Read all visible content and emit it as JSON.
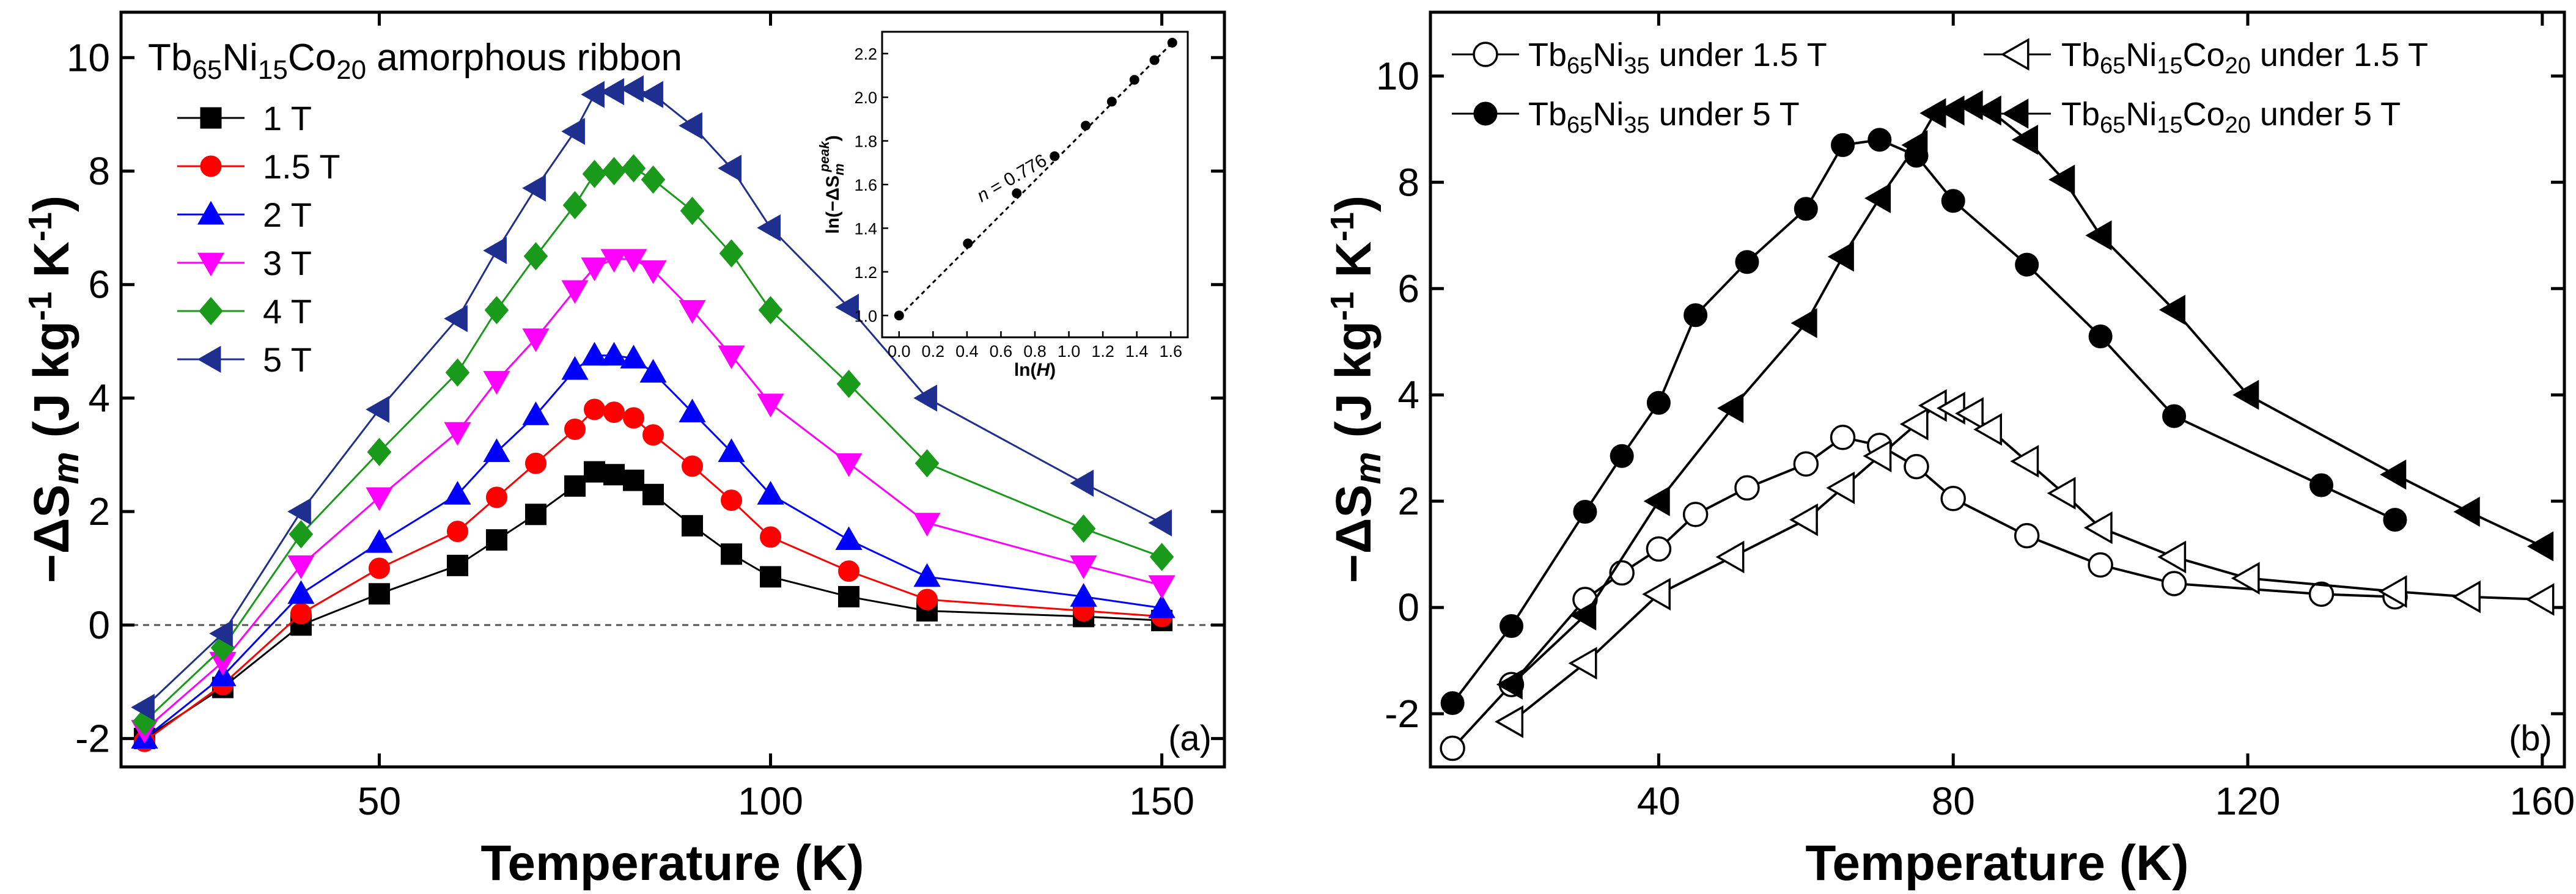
{
  "chart_data": [
    {
      "type": "line",
      "panel_label": "(a)",
      "title_parts": {
        "a": "Tb",
        "a_sub": "65",
        "b": "Ni",
        "b_sub": "15",
        "c": "Co",
        "c_sub": "20",
        "rest": " amorphous ribbon"
      },
      "xlabel": "Temperature (K)",
      "ylabel": {
        "prefix": "−ΔS",
        "sub": "m",
        "units_a": " (J kg",
        "sup1": "-1",
        "units_b": " K",
        "sup2": "-1",
        "units_c": ")"
      },
      "xlim": [
        17,
        158
      ],
      "ylim": [
        -2.5,
        10.8
      ],
      "xticks": [
        50,
        100,
        150
      ],
      "yticks": [
        -2,
        0,
        2,
        4,
        6,
        8,
        10
      ],
      "zero_line": true,
      "legend_position": "upper-left",
      "series": [
        {
          "name": "1 T",
          "color": "#000000",
          "marker": "square",
          "x": [
            20,
            30,
            40,
            50,
            60,
            65,
            70,
            75,
            77.5,
            80,
            82.5,
            85,
            90,
            95,
            100,
            110,
            120,
            140,
            150
          ],
          "y": [
            -2.0,
            -1.1,
            0.0,
            0.55,
            1.05,
            1.5,
            1.95,
            2.45,
            2.7,
            2.65,
            2.55,
            2.3,
            1.75,
            1.25,
            0.85,
            0.5,
            0.25,
            0.15,
            0.08
          ]
        },
        {
          "name": "1.5 T",
          "color": "#ff0000",
          "marker": "circle",
          "x": [
            20,
            30,
            40,
            50,
            60,
            65,
            70,
            75,
            77.5,
            80,
            82.5,
            85,
            90,
            95,
            100,
            110,
            120,
            140,
            150
          ],
          "y": [
            -2.05,
            -1.05,
            0.2,
            1.0,
            1.65,
            2.25,
            2.85,
            3.45,
            3.8,
            3.75,
            3.65,
            3.35,
            2.8,
            2.2,
            1.55,
            0.95,
            0.45,
            0.25,
            0.15
          ]
        },
        {
          "name": "2 T",
          "color": "#0000ff",
          "marker": "triangle-up",
          "x": [
            20,
            30,
            40,
            50,
            60,
            65,
            70,
            75,
            77.5,
            80,
            82.5,
            85,
            90,
            95,
            100,
            110,
            120,
            140,
            150
          ],
          "y": [
            -2.0,
            -0.9,
            0.55,
            1.45,
            2.3,
            3.05,
            3.7,
            4.5,
            4.75,
            4.75,
            4.7,
            4.45,
            3.75,
            3.05,
            2.3,
            1.5,
            0.85,
            0.5,
            0.3
          ]
        },
        {
          "name": "3 T",
          "color": "#ff00ff",
          "marker": "triangle-down",
          "x": [
            20,
            30,
            40,
            50,
            60,
            65,
            70,
            75,
            77.5,
            80,
            82.5,
            85,
            90,
            95,
            100,
            110,
            120,
            140,
            150
          ],
          "y": [
            -1.85,
            -0.65,
            1.05,
            2.25,
            3.4,
            4.3,
            5.05,
            5.9,
            6.3,
            6.45,
            6.45,
            6.25,
            5.55,
            4.75,
            3.9,
            2.85,
            1.8,
            1.05,
            0.7
          ]
        },
        {
          "name": "4 T",
          "color": "#1a9a1a",
          "marker": "diamond",
          "x": [
            20,
            30,
            40,
            50,
            60,
            65,
            70,
            75,
            77.5,
            80,
            82.5,
            85,
            90,
            95,
            100,
            110,
            120,
            140,
            150
          ],
          "y": [
            -1.7,
            -0.4,
            1.6,
            3.05,
            4.45,
            5.55,
            6.5,
            7.4,
            7.95,
            8.0,
            8.05,
            7.85,
            7.3,
            6.55,
            5.55,
            4.25,
            2.85,
            1.7,
            1.2
          ]
        },
        {
          "name": "5 T",
          "color": "#1f2f8f",
          "marker": "triangle-left",
          "x": [
            20,
            30,
            40,
            50,
            60,
            65,
            70,
            75,
            77.5,
            80,
            82.5,
            85,
            90,
            95,
            100,
            110,
            120,
            140,
            150
          ],
          "y": [
            -1.45,
            -0.15,
            2.0,
            3.8,
            5.4,
            6.6,
            7.7,
            8.7,
            9.35,
            9.4,
            9.45,
            9.35,
            8.8,
            8.05,
            7.0,
            5.6,
            4.0,
            2.5,
            1.8
          ]
        }
      ],
      "inset": {
        "type": "scatter",
        "xlabel_prefix": "ln(",
        "xlabel_var": "H",
        "xlabel_suffix": ")",
        "ylabel_prefix": "ln(−ΔS",
        "ylabel_sub": "m",
        "ylabel_sup": "peak",
        "ylabel_suffix": ")",
        "annotation_prefix": "n",
        "annotation_suffix": " = 0.776",
        "xlim": [
          -0.1,
          1.7
        ],
        "ylim": [
          0.9,
          2.3
        ],
        "xticks": [
          "0.0",
          "0.2",
          "0.4",
          "0.6",
          "0.8",
          "1.0",
          "1.2",
          "1.4",
          "1.6"
        ],
        "yticks": [
          "1.0",
          "1.2",
          "1.4",
          "1.6",
          "1.8",
          "2.0",
          "2.2"
        ],
        "x": [
          0.0,
          0.405,
          0.693,
          0.916,
          1.099,
          1.253,
          1.386,
          1.504,
          1.609
        ],
        "y": [
          1.0,
          1.33,
          1.56,
          1.73,
          1.87,
          1.98,
          2.08,
          2.17,
          2.25
        ],
        "fit": [
          [
            0.0,
            0.995
          ],
          [
            1.62,
            2.258
          ]
        ]
      }
    },
    {
      "type": "line",
      "panel_label": "(b)",
      "xlabel": "Temperature (K)",
      "ylabel": {
        "prefix": "−ΔS",
        "sub": "m",
        "units_a": " (J kg",
        "sup1": "-1",
        "units_b": " K",
        "sup2": "-1",
        "units_c": ")"
      },
      "xlim": [
        9,
        163
      ],
      "ylim": [
        -3.0,
        11.2
      ],
      "xticks": [
        40,
        80,
        120,
        160
      ],
      "yticks": [
        -2,
        0,
        2,
        4,
        6,
        8,
        10
      ],
      "legend_position": "top",
      "series": [
        {
          "name_parts": {
            "a": "Tb",
            "a_sub": "65",
            "b": "Ni",
            "b_sub": "35",
            "rest": " under 1.5 T"
          },
          "color": "#000000",
          "marker": "circle",
          "filled": false,
          "x": [
            12,
            20,
            30,
            35,
            40,
            45,
            52,
            60,
            65,
            70,
            75,
            80,
            90,
            100,
            110,
            130,
            140
          ],
          "y": [
            -2.65,
            -1.45,
            0.15,
            0.65,
            1.1,
            1.75,
            2.25,
            2.7,
            3.2,
            3.05,
            2.65,
            2.05,
            1.35,
            0.8,
            0.45,
            0.25,
            0.2
          ]
        },
        {
          "name_parts": {
            "a": "Tb",
            "a_sub": "65",
            "b": "Ni",
            "b_sub": "15",
            "c": "Co",
            "c_sub": "20",
            "rest": " under 1.5 T"
          },
          "color": "#000000",
          "marker": "triangle-left",
          "filled": false,
          "x": [
            20,
            30,
            40,
            50,
            60,
            65,
            70,
            75,
            77.5,
            80,
            82.5,
            85,
            90,
            95,
            100,
            110,
            120,
            140,
            150,
            160
          ],
          "y": [
            -2.15,
            -1.05,
            0.25,
            0.95,
            1.65,
            2.25,
            2.85,
            3.45,
            3.8,
            3.75,
            3.65,
            3.35,
            2.75,
            2.15,
            1.5,
            0.95,
            0.55,
            0.3,
            0.2,
            0.15
          ]
        },
        {
          "name_parts": {
            "a": "Tb",
            "a_sub": "65",
            "b": "Ni",
            "b_sub": "35",
            "rest": " under 5 T"
          },
          "color": "#000000",
          "marker": "circle",
          "filled": true,
          "x": [
            12,
            20,
            30,
            35,
            40,
            45,
            52,
            60,
            65,
            70,
            75,
            80,
            90,
            100,
            110,
            130,
            140
          ],
          "y": [
            -1.8,
            -0.35,
            1.8,
            2.85,
            3.85,
            5.5,
            6.5,
            7.5,
            8.7,
            8.8,
            8.5,
            7.65,
            6.45,
            5.1,
            3.6,
            2.3,
            1.65
          ]
        },
        {
          "name_parts": {
            "a": "Tb",
            "a_sub": "65",
            "b": "Ni",
            "b_sub": "15",
            "c": "Co",
            "c_sub": "20",
            "rest": " under 5 T"
          },
          "color": "#000000",
          "marker": "triangle-left",
          "filled": true,
          "x": [
            20,
            30,
            40,
            50,
            60,
            65,
            70,
            75,
            77.5,
            80,
            82.5,
            85,
            90,
            95,
            100,
            110,
            120,
            140,
            150,
            160
          ],
          "y": [
            -1.45,
            -0.15,
            2.0,
            3.75,
            5.35,
            6.6,
            7.7,
            8.7,
            9.3,
            9.35,
            9.45,
            9.35,
            8.8,
            8.05,
            7.0,
            5.6,
            4.0,
            2.5,
            1.8,
            1.15
          ]
        }
      ]
    }
  ]
}
